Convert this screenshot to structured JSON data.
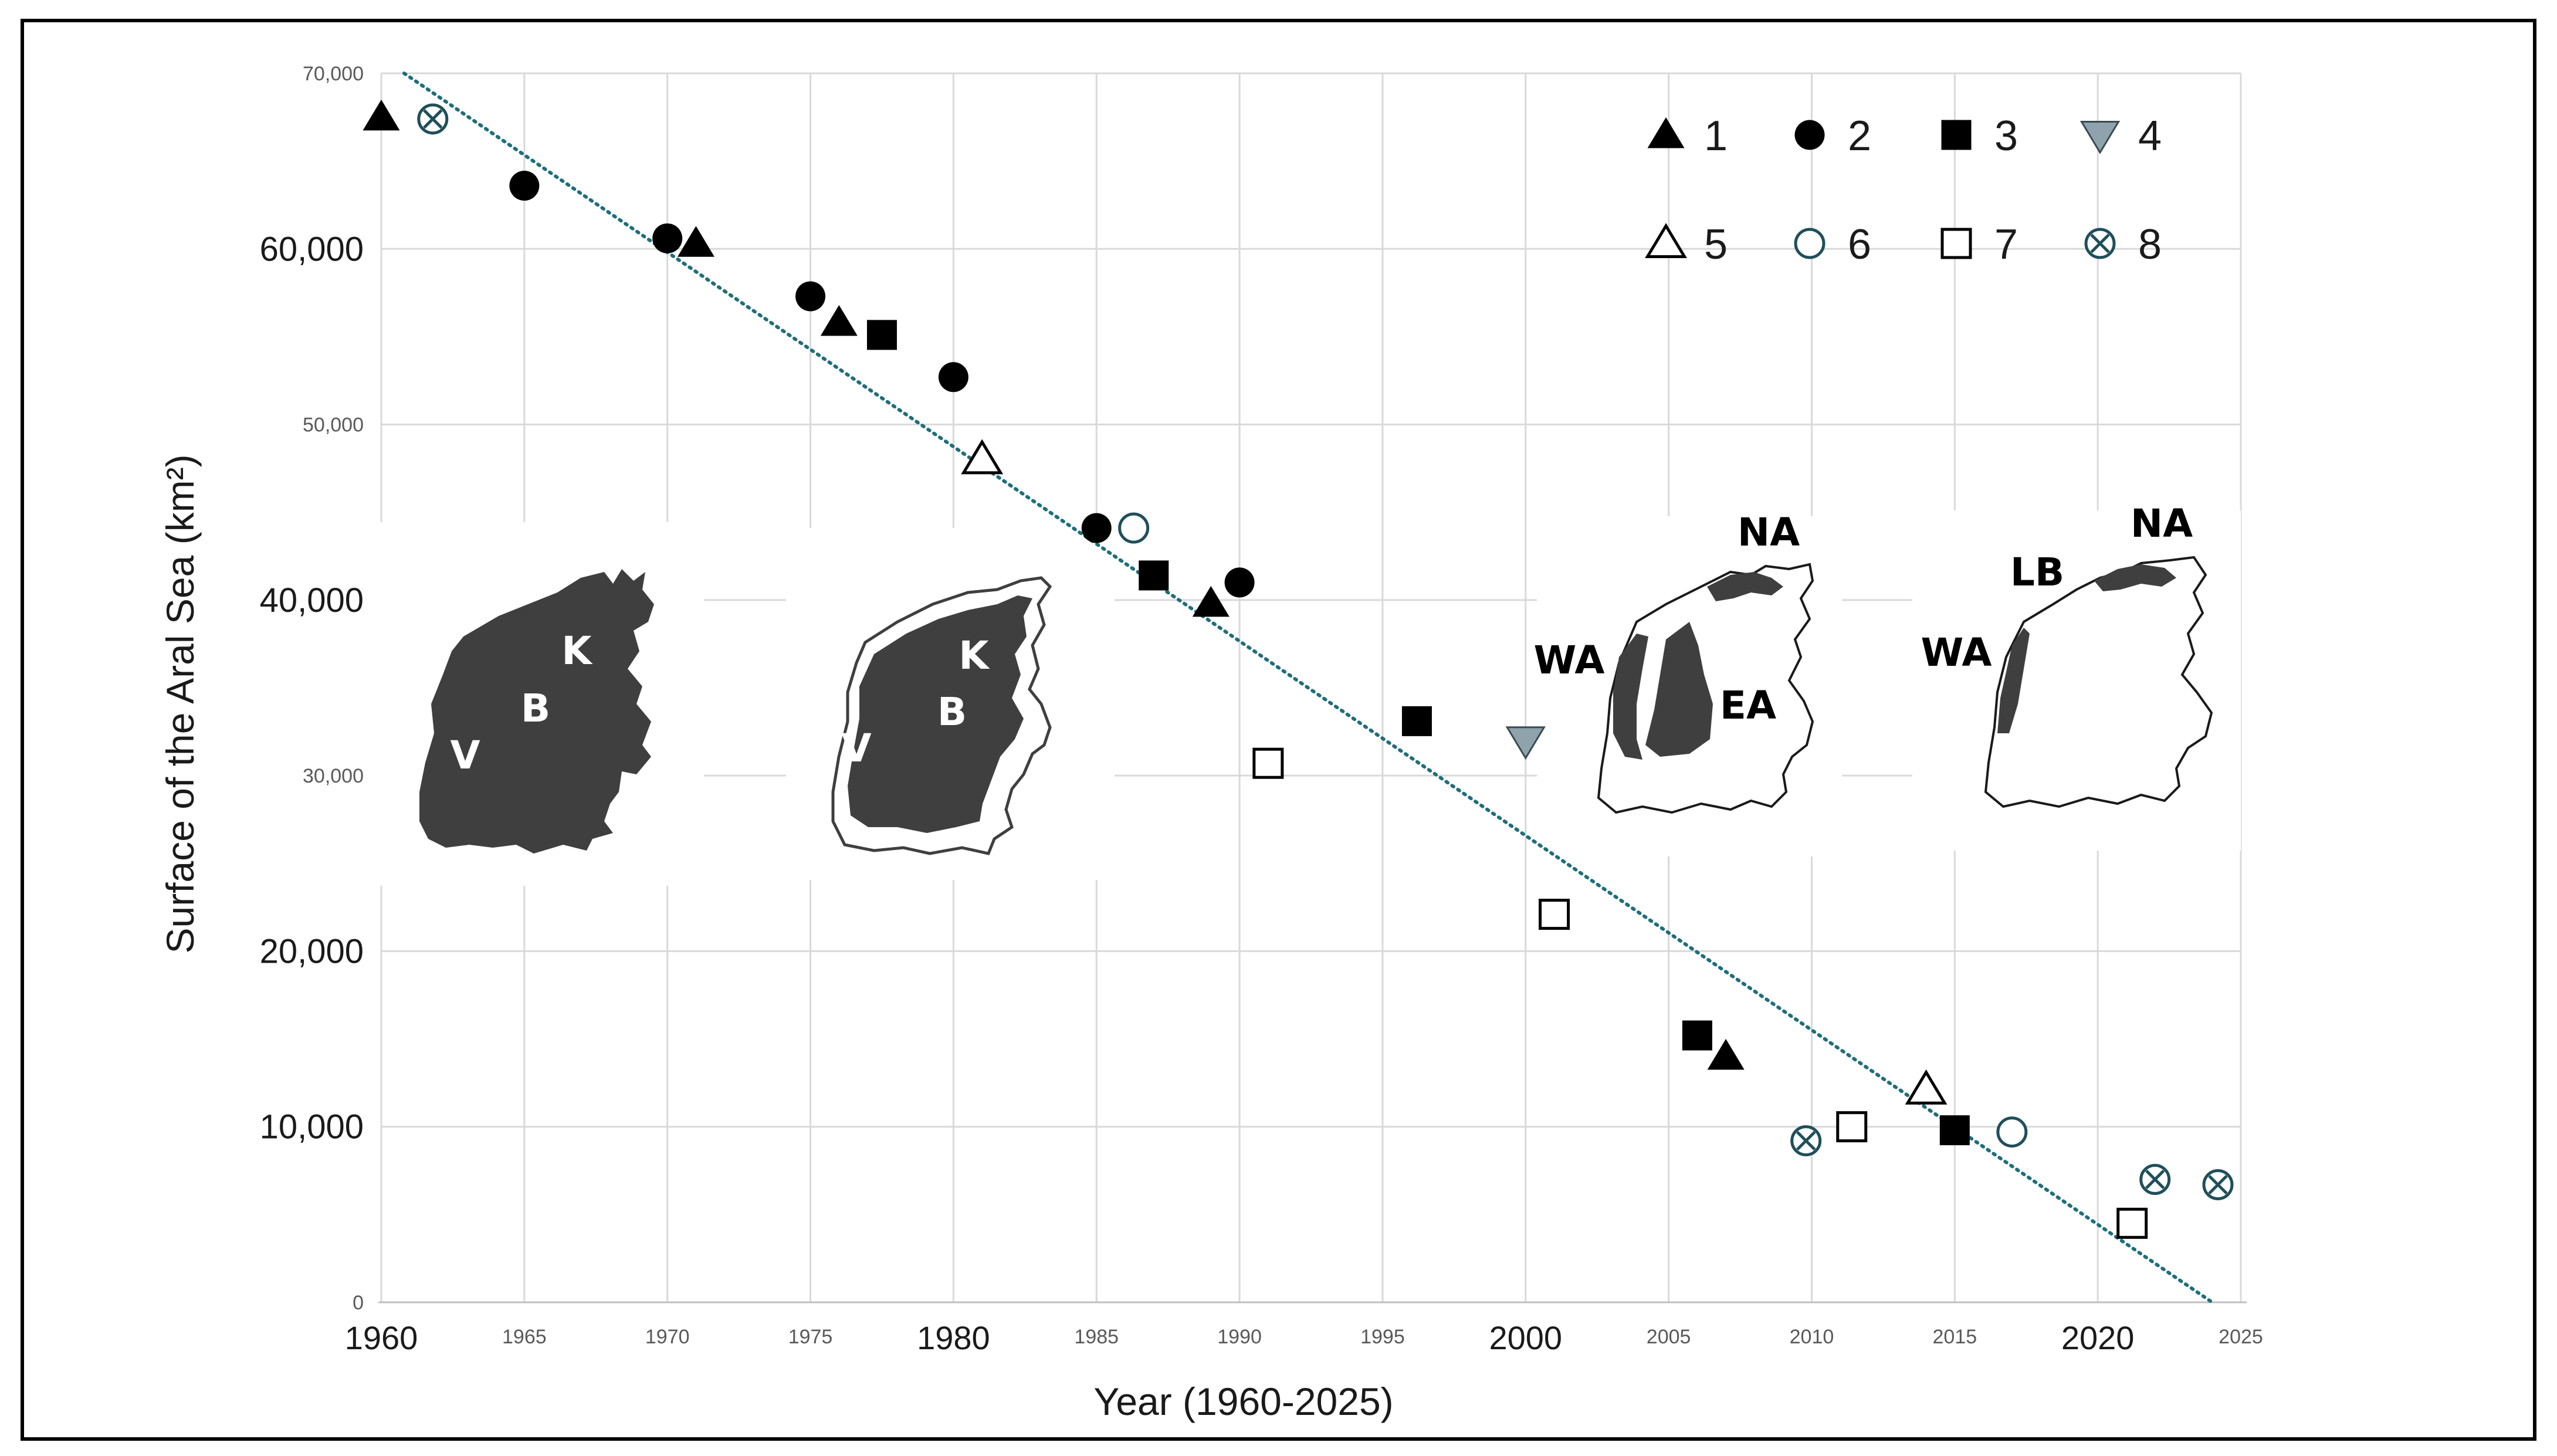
{
  "chart_data": {
    "type": "scatter",
    "title": "",
    "xlabel": "Year (1960-2025)",
    "ylabel": "Surface of the Aral Sea (km²)",
    "xlim": [
      1960,
      2025
    ],
    "ylim": [
      0,
      70000
    ],
    "grid": true,
    "legend_position": "top-right",
    "x_ticks": [
      {
        "value": 1960,
        "label": "1960",
        "emphasis": true
      },
      {
        "value": 1965,
        "label": "1965",
        "emphasis": false
      },
      {
        "value": 1970,
        "label": "1970",
        "emphasis": false
      },
      {
        "value": 1975,
        "label": "1975",
        "emphasis": false
      },
      {
        "value": 1980,
        "label": "1980",
        "emphasis": true
      },
      {
        "value": 1985,
        "label": "1985",
        "emphasis": false
      },
      {
        "value": 1990,
        "label": "1990",
        "emphasis": false
      },
      {
        "value": 1995,
        "label": "1995",
        "emphasis": false
      },
      {
        "value": 2000,
        "label": "2000",
        "emphasis": true
      },
      {
        "value": 2005,
        "label": "2005",
        "emphasis": false
      },
      {
        "value": 2010,
        "label": "2010",
        "emphasis": false
      },
      {
        "value": 2015,
        "label": "2015",
        "emphasis": false
      },
      {
        "value": 2020,
        "label": "2020",
        "emphasis": true
      },
      {
        "value": 2025,
        "label": "2025",
        "emphasis": false
      }
    ],
    "y_ticks": [
      {
        "value": 0,
        "label": "0",
        "emphasis": false
      },
      {
        "value": 10000,
        "label": "10,000",
        "emphasis": true
      },
      {
        "value": 20000,
        "label": "20,000",
        "emphasis": true
      },
      {
        "value": 30000,
        "label": "30,000",
        "emphasis": false
      },
      {
        "value": 40000,
        "label": "40,000",
        "emphasis": true
      },
      {
        "value": 50000,
        "label": "50,000",
        "emphasis": false
      },
      {
        "value": 60000,
        "label": "60,000",
        "emphasis": true
      },
      {
        "value": 70000,
        "label": "70,000",
        "emphasis": false
      }
    ],
    "trendline": {
      "style": "dotted",
      "color": "#1f6f7a",
      "points": [
        [
          1960.8,
          70000
        ],
        [
          2024,
          0
        ]
      ]
    },
    "series": [
      {
        "name": "1",
        "marker": "triangle-filled",
        "color": "#000000",
        "points": [
          [
            1960,
            67500
          ],
          [
            1971,
            60300
          ],
          [
            1976,
            55800
          ],
          [
            1989,
            39800
          ],
          [
            2007,
            14000
          ]
        ]
      },
      {
        "name": "2",
        "marker": "circle-filled",
        "color": "#000000",
        "points": [
          [
            1965,
            63600
          ],
          [
            1970,
            60600
          ],
          [
            1975,
            57300
          ],
          [
            1980,
            52700
          ],
          [
            1985,
            44100
          ],
          [
            1990,
            41000
          ]
        ]
      },
      {
        "name": "3",
        "marker": "square-filled",
        "color": "#000000",
        "points": [
          [
            1977.5,
            55100
          ],
          [
            1987,
            41400
          ],
          [
            1996.2,
            33100
          ],
          [
            2006,
            15200
          ],
          [
            2015,
            9800
          ]
        ]
      },
      {
        "name": "4",
        "marker": "triangle-down-filled",
        "color": "#8fa3ad",
        "points": [
          [
            2000,
            32000
          ]
        ]
      },
      {
        "name": "5",
        "marker": "triangle-open",
        "color": "#000000",
        "points": [
          [
            1981,
            48000
          ],
          [
            2014,
            12100
          ]
        ]
      },
      {
        "name": "6",
        "marker": "circle-open",
        "color": "#1f4f5a",
        "points": [
          [
            1986.3,
            44100
          ],
          [
            2017,
            9700
          ]
        ]
      },
      {
        "name": "7",
        "marker": "square-open",
        "color": "#000000",
        "points": [
          [
            1991,
            30700
          ],
          [
            2001,
            22100
          ],
          [
            2011.4,
            10000
          ],
          [
            2021.2,
            4500
          ]
        ]
      },
      {
        "name": "8",
        "marker": "circle-x",
        "color": "#1f4f5a",
        "points": [
          [
            1961.8,
            67400
          ],
          [
            2009.8,
            9200
          ],
          [
            2022,
            7000
          ],
          [
            2024.2,
            6700
          ]
        ]
      }
    ],
    "map_insets": [
      {
        "labels": [
          "K",
          "B",
          "V"
        ]
      },
      {
        "labels": [
          "K",
          "B",
          "V"
        ]
      },
      {
        "labels": [
          "NA",
          "WA",
          "EA"
        ]
      },
      {
        "labels": [
          "NA",
          "LB",
          "WA"
        ]
      }
    ]
  },
  "colors": {
    "frame": "#000000",
    "gridline": "#d9d9d9",
    "sea": "#3f3f3f",
    "trend": "#1f6f7a"
  }
}
